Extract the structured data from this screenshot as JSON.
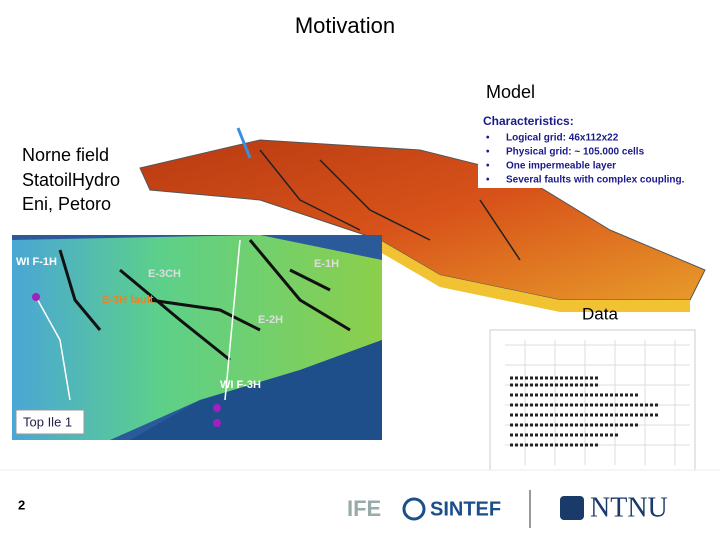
{
  "header": {
    "title": "Motivation"
  },
  "field": {
    "lines": [
      "Norne field",
      "StatoilHydro",
      "Eni, Petoro"
    ]
  },
  "model": {
    "label": "Model",
    "characteristics": {
      "heading": "Characteristics:",
      "items": [
        "Logical grid: 46x112x22",
        "Physical grid: ~ 105.000 cells",
        "One impermeable layer",
        "Several faults with complex coupling."
      ]
    }
  },
  "map": {
    "wells": [
      "WI F-1H",
      "E-3CH",
      "E-1H",
      "E-3H fault",
      "E-2H",
      "WI F-3H"
    ],
    "caption": "Top Ile 1"
  },
  "data": {
    "label": "Data"
  },
  "footer": {
    "page_number": "2",
    "logos": [
      "IFE",
      "SINTEF",
      "NTNU"
    ]
  }
}
